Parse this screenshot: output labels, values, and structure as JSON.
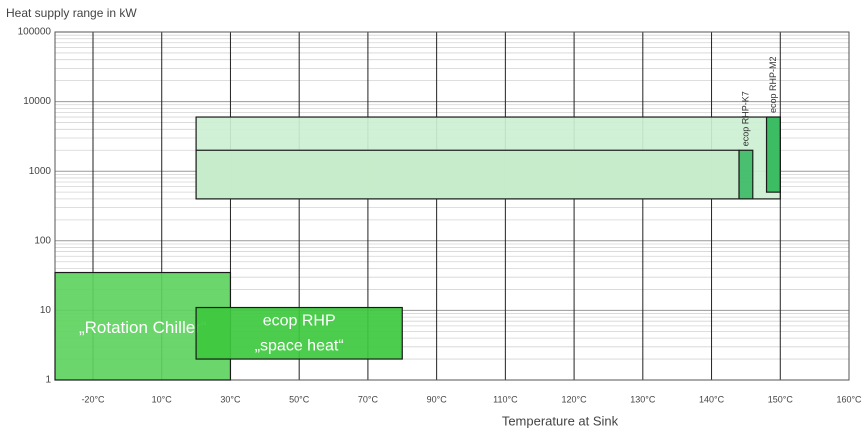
{
  "chart_data": {
    "type": "range",
    "title": "Heat supply range in kW",
    "x_label": "Temperature at Sink",
    "xlim": [
      -35,
      160
    ],
    "xticks": [
      {
        "value": -20,
        "label": "-20°C"
      },
      {
        "value": 10,
        "label": "10°C"
      },
      {
        "value": 30,
        "label": "30°C"
      },
      {
        "value": 50,
        "label": "50°C"
      },
      {
        "value": 70,
        "label": "70°C"
      },
      {
        "value": 90,
        "label": "90°C"
      },
      {
        "value": 110,
        "label": "110°C"
      },
      {
        "value": 120,
        "label": "120°C"
      },
      {
        "value": 130,
        "label": "130°C"
      },
      {
        "value": 140,
        "label": "140°C"
      },
      {
        "value": 150,
        "label": "150°C"
      },
      {
        "value": 160,
        "label": "160°C"
      }
    ],
    "ylim": [
      1,
      100000
    ],
    "yticks": [
      1,
      10,
      100,
      1000,
      10000,
      100000
    ],
    "log_y": true,
    "grid": true,
    "minor_grid": true,
    "series": [
      {
        "name": "„Rotation Chiller“",
        "color": "#5ed35e",
        "x": [
          -35,
          30
        ],
        "y": [
          1,
          35
        ],
        "label_style": "inside"
      },
      {
        "name": "ecop RHP",
        "name2": "„space heat“",
        "color": "#3ec93e",
        "x": [
          20,
          80
        ],
        "y": [
          2,
          11
        ],
        "label_style": "inside"
      },
      {
        "color": "#cdf0d3",
        "x": [
          20,
          150
        ],
        "y": [
          400,
          6000
        ]
      },
      {
        "color": "#c5ecca",
        "x": [
          20,
          144
        ],
        "y": [
          400,
          2000
        ]
      },
      {
        "name": "ecop RHP-K7",
        "color": "#3dbb66",
        "x": [
          144,
          146
        ],
        "y": [
          400,
          2000
        ],
        "label_style": "vertical"
      },
      {
        "name": "ecop RHP-M2",
        "color": "#2fb85a",
        "x": [
          148,
          150
        ],
        "y": [
          500,
          6000
        ],
        "label_style": "vertical"
      }
    ]
  }
}
